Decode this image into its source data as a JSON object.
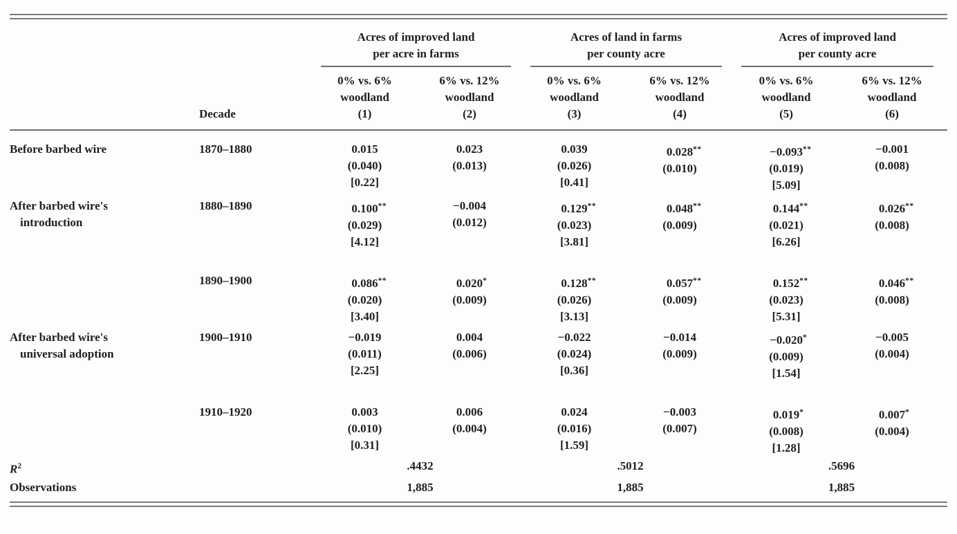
{
  "table": {
    "header": {
      "decade_label": "Decade",
      "groups": [
        {
          "line1": "Acres of improved land",
          "line2": "per acre in farms"
        },
        {
          "line1": "Acres of land in farms",
          "line2": "per county acre"
        },
        {
          "line1": "Acres of improved land",
          "line2": "per county acre"
        }
      ],
      "columns": [
        {
          "line1": "0% vs. 6%",
          "line2": "woodland",
          "num": "(1)"
        },
        {
          "line1": "6% vs. 12%",
          "line2": "woodland",
          "num": "(2)"
        },
        {
          "line1": "0% vs. 6%",
          "line2": "woodland",
          "num": "(3)"
        },
        {
          "line1": "6% vs. 12%",
          "line2": "woodland",
          "num": "(4)"
        },
        {
          "line1": "0% vs. 6%",
          "line2": "woodland",
          "num": "(5)"
        },
        {
          "line1": "6% vs. 12%",
          "line2": "woodland",
          "num": "(6)"
        }
      ]
    },
    "rows": [
      {
        "label_line1": "Before barbed wire",
        "label_line2": "",
        "decade": "1870–1880",
        "cells": [
          {
            "coef": "0.015",
            "stars": "",
            "se": "(0.040)",
            "t": "[0.22]"
          },
          {
            "coef": "0.023",
            "stars": "",
            "se": "(0.013)",
            "t": ""
          },
          {
            "coef": "0.039",
            "stars": "",
            "se": "(0.026)",
            "t": "[0.41]"
          },
          {
            "coef": "0.028",
            "stars": "**",
            "se": "(0.010)",
            "t": ""
          },
          {
            "coef": "−0.093",
            "stars": "**",
            "se": "(0.019)",
            "t": "[5.09]"
          },
          {
            "coef": "−0.001",
            "stars": "",
            "se": "(0.008)",
            "t": ""
          }
        ]
      },
      {
        "label_line1": "After barbed wire's",
        "label_line2": "introduction",
        "decade": "1880–1890",
        "cells": [
          {
            "coef": "0.100",
            "stars": "**",
            "se": "(0.029)",
            "t": "[4.12]"
          },
          {
            "coef": "−0.004",
            "stars": "",
            "se": "(0.012)",
            "t": ""
          },
          {
            "coef": "0.129",
            "stars": "**",
            "se": "(0.023)",
            "t": "[3.81]"
          },
          {
            "coef": "0.048",
            "stars": "**",
            "se": "(0.009)",
            "t": ""
          },
          {
            "coef": "0.144",
            "stars": "**",
            "se": "(0.021)",
            "t": "[6.26]"
          },
          {
            "coef": "0.026",
            "stars": "**",
            "se": "(0.008)",
            "t": ""
          }
        ]
      },
      {
        "label_line1": "",
        "label_line2": "",
        "decade": "1890–1900",
        "cells": [
          {
            "coef": "0.086",
            "stars": "**",
            "se": "(0.020)",
            "t": "[3.40]"
          },
          {
            "coef": "0.020",
            "stars": "*",
            "se": "(0.009)",
            "t": ""
          },
          {
            "coef": "0.128",
            "stars": "**",
            "se": "(0.026)",
            "t": "[3.13]"
          },
          {
            "coef": "0.057",
            "stars": "**",
            "se": "(0.009)",
            "t": ""
          },
          {
            "coef": "0.152",
            "stars": "**",
            "se": "(0.023)",
            "t": "[5.31]"
          },
          {
            "coef": "0.046",
            "stars": "**",
            "se": "(0.008)",
            "t": ""
          }
        ]
      },
      {
        "label_line1": "After barbed wire's",
        "label_line2": "universal adoption",
        "decade": "1900–1910",
        "cells": [
          {
            "coef": "−0.019",
            "stars": "",
            "se": "(0.011)",
            "t": "[2.25]"
          },
          {
            "coef": "0.004",
            "stars": "",
            "se": "(0.006)",
            "t": ""
          },
          {
            "coef": "−0.022",
            "stars": "",
            "se": "(0.024)",
            "t": "[0.36]"
          },
          {
            "coef": "−0.014",
            "stars": "",
            "se": "(0.009)",
            "t": ""
          },
          {
            "coef": "−0.020",
            "stars": "*",
            "se": "(0.009)",
            "t": "[1.54]"
          },
          {
            "coef": "−0.005",
            "stars": "",
            "se": "(0.004)",
            "t": ""
          }
        ]
      },
      {
        "label_line1": "",
        "label_line2": "",
        "decade": "1910–1920",
        "cells": [
          {
            "coef": "0.003",
            "stars": "",
            "se": "(0.010)",
            "t": "[0.31]"
          },
          {
            "coef": "0.006",
            "stars": "",
            "se": "(0.004)",
            "t": ""
          },
          {
            "coef": "0.024",
            "stars": "",
            "se": "(0.016)",
            "t": "[1.59]"
          },
          {
            "coef": "−0.003",
            "stars": "",
            "se": "(0.007)",
            "t": ""
          },
          {
            "coef": "0.019",
            "stars": "*",
            "se": "(0.008)",
            "t": "[1.28]"
          },
          {
            "coef": "0.007",
            "stars": "*",
            "se": "(0.004)",
            "t": ""
          }
        ]
      }
    ],
    "footer": {
      "r2": {
        "label_base": "R",
        "label_sup": "2",
        "values": [
          ".4432",
          ".5012",
          ".5696"
        ]
      },
      "observations": {
        "label": "Observations",
        "values": [
          "1,885",
          "1,885",
          "1,885"
        ]
      }
    }
  }
}
